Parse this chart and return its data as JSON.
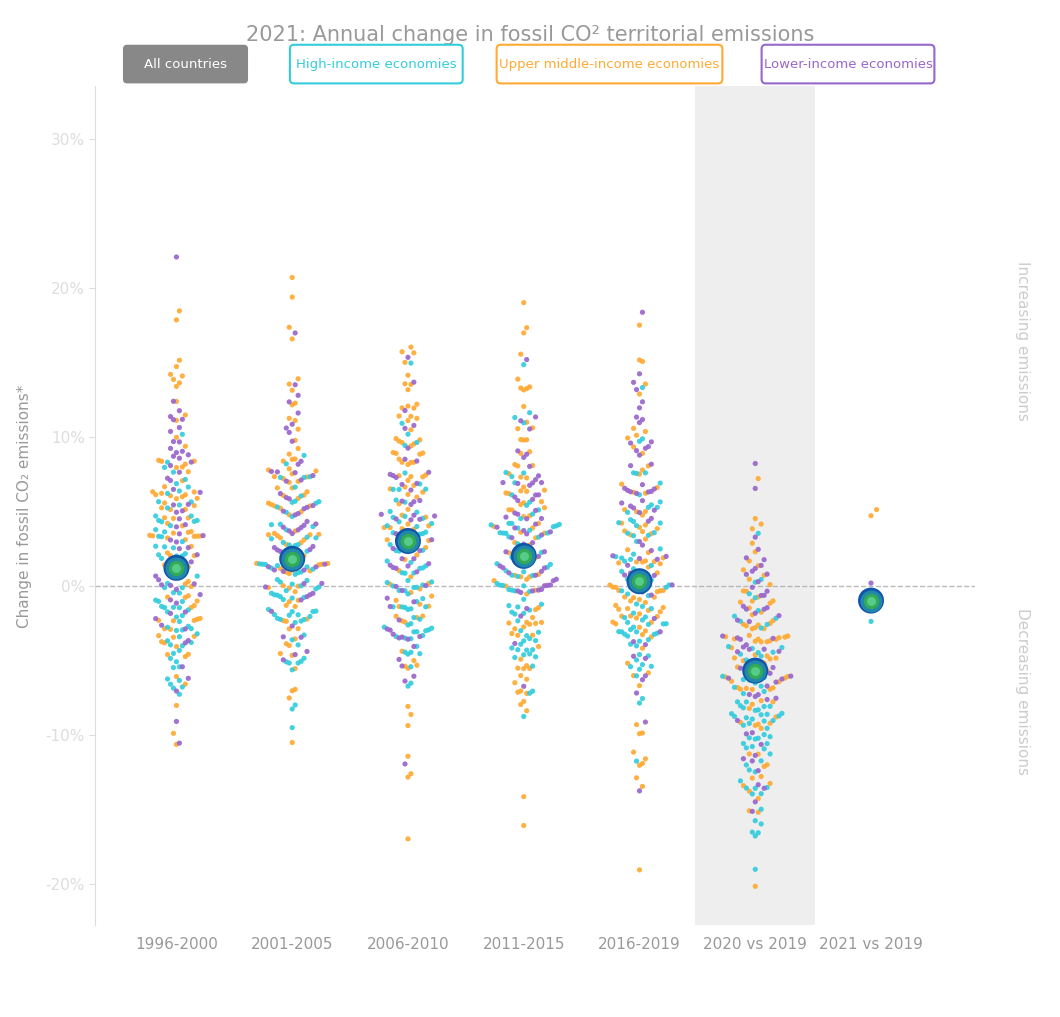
{
  "title": "2021: Annual change in fossil CO² territorial emissions",
  "categories": [
    "1996-2000",
    "2001-2005",
    "2006-2010",
    "2011-2015",
    "2016-2019",
    "2020 vs 2019",
    "2021 vs 2019"
  ],
  "ylabel": "Change in fossil CO₂ emissions*",
  "colors": {
    "all_countries": "#888888",
    "high_income": "#33ccdd",
    "upper_middle": "#ffaa33",
    "lower_income": "#9966cc"
  },
  "legend_labels": [
    "All countries",
    "High-income economies",
    "Upper middle-income economies",
    "Lower-income economies"
  ],
  "background_color": "#ffffff",
  "shaded_color": "#eeeeee",
  "dashed_zero_color": "#aaaaaa",
  "right_label_increasing": "Increasing emissions",
  "right_label_decreasing": "Decreasing emissions",
  "ylim": [
    -0.228,
    0.335
  ],
  "yticks": [
    -0.2,
    -0.1,
    0.0,
    0.1,
    0.2,
    0.3
  ],
  "ytick_labels": [
    "-20%",
    "-10%",
    "0%",
    "10%",
    "20%",
    "30%"
  ],
  "globe_values": [
    0.012,
    0.018,
    0.03,
    0.02,
    0.003,
    -0.057,
    -0.01
  ],
  "dist_params": {
    "1996-2000": {
      "high_income": [
        0.01,
        0.045,
        80,
        100
      ],
      "upper_middle": [
        0.022,
        0.06,
        90,
        101
      ],
      "lower_income": [
        0.032,
        0.055,
        60,
        102
      ]
    },
    "2001-2005": {
      "high_income": [
        0.01,
        0.04,
        80,
        110
      ],
      "upper_middle": [
        0.038,
        0.065,
        90,
        111
      ],
      "lower_income": [
        0.042,
        0.058,
        60,
        112
      ]
    },
    "2006-2010": {
      "high_income": [
        0.005,
        0.045,
        80,
        120
      ],
      "upper_middle": [
        0.04,
        0.068,
        90,
        121
      ],
      "lower_income": [
        0.042,
        0.055,
        60,
        122
      ]
    },
    "2011-2015": {
      "high_income": [
        0.002,
        0.048,
        80,
        130
      ],
      "upper_middle": [
        0.025,
        0.068,
        90,
        131
      ],
      "lower_income": [
        0.042,
        0.055,
        60,
        132
      ]
    },
    "2016-2019": {
      "high_income": [
        -0.002,
        0.045,
        80,
        140
      ],
      "upper_middle": [
        0.012,
        0.06,
        90,
        141
      ],
      "lower_income": [
        0.038,
        0.055,
        60,
        142
      ]
    },
    "2020 vs 2019": {
      "high_income": [
        -0.078,
        0.042,
        80,
        150
      ],
      "upper_middle": [
        -0.058,
        0.055,
        90,
        151
      ],
      "lower_income": [
        -0.032,
        0.05,
        60,
        152
      ]
    },
    "2021 vs 2019": {
      "high_income": [
        -0.02,
        0.008,
        2,
        160
      ],
      "upper_middle": [
        0.048,
        0.006,
        2,
        161
      ],
      "lower_income": [
        -0.005,
        0.006,
        2,
        162
      ]
    }
  }
}
